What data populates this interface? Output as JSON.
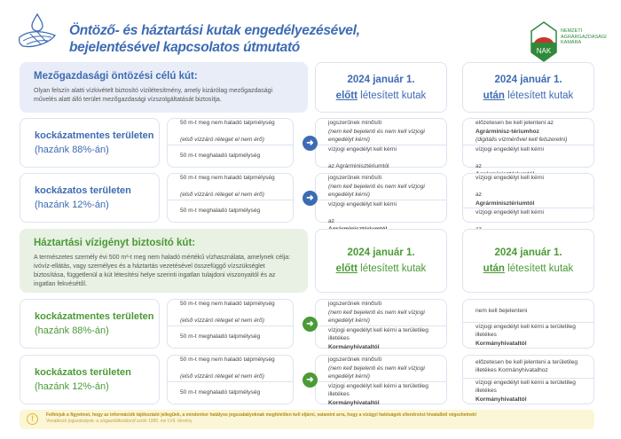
{
  "header": {
    "title_line1": "Öntöző- és háztartási kutak engedélyezésével,",
    "title_line2": "bejelentésével kapcsolatos útmutató",
    "logo_text": "NAK",
    "logo_name": "NEMZETI AGRÁRGAZDASÁGI KAMARA"
  },
  "colors": {
    "blue": "#3d6bb3",
    "green": "#4a9a35",
    "blue_bg": "#e8edf7",
    "green_bg": "#e8f1e3"
  },
  "sections": [
    {
      "title": "Mezőgazdasági öntözési célú kút:",
      "desc": "Olyan felszín alatti vízkivételt biztosító vízilétesítmény, amely kizárólag mezőgazdasági művelés alatt álló terület mezőgazdasági vízszolgáltatását biztosítja.",
      "col_before": {
        "date": "2024 január 1.",
        "kw": "előtt",
        "rest": " létesített kutak"
      },
      "col_after": {
        "date": "2024 január 1.",
        "kw": "után",
        "rest": " létesített kutak"
      },
      "rows": [
        {
          "name": "kockázatmentes területen",
          "share": "(hazánk 88%-án)",
          "depth": [
            [
              {
                "t": "50 m-t meg nem haladó talpmélység"
              },
              {
                "t": "(első vízzáró réteget el nem érő)",
                "i": 1,
                "br": 1
              }
            ],
            [
              {
                "t": "50 m-t meghaladó talpmélység"
              }
            ]
          ],
          "before": [
            [
              {
                "t": "jogszerűnek minősíti "
              },
              {
                "t": "(nem kell bejelenti és nem kell vízjogi engedélyt kérni)",
                "i": 1
              }
            ],
            [
              {
                "t": "vízjogi engedélyt kell kérni"
              },
              {
                "t": "az Agrárminisztériumtól",
                "br": 1
              }
            ]
          ],
          "after": [
            [
              {
                "t": "előzetesen be kell jelenteni az "
              },
              {
                "t": "Agrárminisz-tériumhoz",
                "b": 1
              },
              {
                "t": " (digitális vízmérővel kell felszerelni)",
                "i": 1
              }
            ],
            [
              {
                "t": "vízjogi engedélyt kell kérni"
              },
              {
                "t": "az ",
                "br": 1
              },
              {
                "t": "Agrárminisztériumtól",
                "b": 1
              }
            ]
          ]
        },
        {
          "name": "kockázatos területen",
          "share": "(hazánk 12%-án)",
          "depth": [
            [
              {
                "t": "50 m-t meg nem haladó talpmélység"
              },
              {
                "t": "(első vízzáró réteget el nem érő)",
                "i": 1,
                "br": 1
              }
            ],
            [
              {
                "t": "50 m-t meghaladó talpmélység"
              }
            ]
          ],
          "before": [
            [
              {
                "t": "jogszerűnek minősíti "
              },
              {
                "t": "(nem kell bejelenti és nem kell vízjogi engedélyt kérni)",
                "i": 1
              }
            ],
            [
              {
                "t": "vízjogi engedélyt kell kérni"
              },
              {
                "t": "az ",
                "br": 1
              },
              {
                "t": "Agrárminisztériumtól",
                "b": 1
              }
            ]
          ],
          "after": [
            [
              {
                "t": "vízjogi engedélyt kell kérni"
              },
              {
                "t": "az ",
                "br": 1
              },
              {
                "t": "Agrárminisztériumtól",
                "b": 1
              }
            ],
            [
              {
                "t": "vízjogi engedélyt kell kérni"
              },
              {
                "t": "az ",
                "br": 1
              },
              {
                "t": "Agrárminisztériumtól",
                "b": 1
              }
            ]
          ]
        }
      ]
    },
    {
      "title": "Háztartási vízigényt biztosító kút:",
      "desc": "A természetes személy évi 500 m³-t meg nem haladó mértékű vízhasználata, amelynek célja: ivóvíz-ellátás, vagy személyes és a háztartás vezetésével összefüggő vízszükséglet biztosítása, függetlenül a kút létesítési helye szerinti ingatlan tulajdoni viszonyaitól és az ingatlan fekvésétől.",
      "col_before": {
        "date": "2024 január 1.",
        "kw": "előtt",
        "rest": " létesített kutak"
      },
      "col_after": {
        "date": "2024 január 1.",
        "kw": "után",
        "rest": " létesített kutak"
      },
      "rows": [
        {
          "name": "kockázatmentes területen",
          "share": "(hazánk 88%-án)",
          "depth": [
            [
              {
                "t": "50 m-t meg nem haladó talpmélység"
              },
              {
                "t": "(első vízzáró réteget el nem érő)",
                "i": 1,
                "br": 1
              }
            ],
            [
              {
                "t": "50 m-t meghaladó talpmélység"
              }
            ]
          ],
          "before": [
            [
              {
                "t": "jogszerűnek minősíti "
              },
              {
                "t": "(nem kell bejelenti és nem kell vízjogi engedélyt kérni)",
                "i": 1
              }
            ],
            [
              {
                "t": "vízjogi engedélyt kell kérni a területileg illetékes "
              },
              {
                "t": "Kormányhivataltól",
                "b": 1
              }
            ]
          ],
          "after": [
            [
              {
                "t": "nem kell bejelenteni"
              }
            ],
            [
              {
                "t": "vízjogi engedélyt kell kérni a területileg illetékes "
              },
              {
                "t": "Kormányhivataltól",
                "b": 1
              }
            ]
          ]
        },
        {
          "name": "kockázatos területen",
          "share": "(hazánk 12%-án)",
          "depth": [
            [
              {
                "t": "50 m-t meg nem haladó talpmélység"
              },
              {
                "t": "(első vízzáró réteget el nem érő)",
                "i": 1,
                "br": 1
              }
            ],
            [
              {
                "t": "50 m-t meghaladó talpmélység"
              }
            ]
          ],
          "before": [
            [
              {
                "t": "jogszerűnek minősíti "
              },
              {
                "t": "(nem kell bejelenti és nem kell vízjogi engedélyt kérni)",
                "i": 1
              }
            ],
            [
              {
                "t": "vízjogi engedélyt kell kérni a területileg illetékes "
              },
              {
                "t": "Kormányhivataltól",
                "b": 1
              }
            ]
          ],
          "after": [
            [
              {
                "t": "előzetesen be kell jelenteni a területileg illetékes Kormányhivatalhoz"
              }
            ],
            [
              {
                "t": "vízjogi engedélyt kell kérni a területileg illetékes "
              },
              {
                "t": "Kormányhivataltól",
                "b": 1
              }
            ]
          ]
        }
      ]
    }
  ],
  "footer": {
    "notice": "Felhívjuk a figyelmet, hogy az információk tájékoztató jellegűek, a mindenkor hatályos jogszabályoknak megfelelően kell eljárni, valamint arra, hogy a vízügyi hatóságok ellenőrzést hivatalból végezhetnek!",
    "law_prefix": "Vonatkozó jogszabályok: a ",
    "law_italic": "vízgazdálkodásról",
    "law_suffix": " szóló 1995. évi LVII. törvény"
  }
}
